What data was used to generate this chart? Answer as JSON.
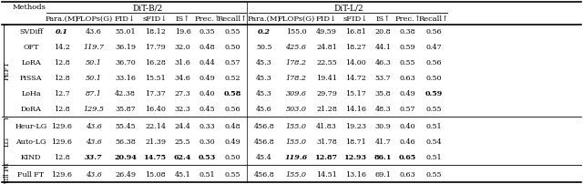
{
  "sub_headers": [
    "Para.(M)",
    "FLOPs(G)",
    "FID↓",
    "sFID↓",
    "IS↑",
    "Prec.↑",
    "Recall↑"
  ],
  "row_groups": [
    {
      "label": "PEFT",
      "rows": [
        {
          "method": "SVDiff",
          "b": [
            "0.1",
            "43.6",
            "55.01",
            "18.12",
            "19.6",
            "0.35",
            "0.55"
          ],
          "l": [
            "0.2",
            "155.0",
            "49.59",
            "16.81",
            "20.8",
            "0.38",
            "0.56"
          ],
          "b_bold": [
            true,
            false,
            false,
            false,
            false,
            false,
            false
          ],
          "b_italic": [
            true,
            false,
            false,
            false,
            false,
            false,
            false
          ],
          "l_bold": [
            true,
            false,
            false,
            false,
            false,
            false,
            false
          ],
          "l_italic": [
            true,
            false,
            false,
            false,
            false,
            false,
            false
          ]
        },
        {
          "method": "OFT",
          "b": [
            "14.2",
            "119.7",
            "36.19",
            "17.79",
            "32.0",
            "0.48",
            "0.50"
          ],
          "l": [
            "50.5",
            "425.6",
            "24.81",
            "18.27",
            "44.1",
            "0.59",
            "0.47"
          ],
          "b_bold": [
            false,
            false,
            false,
            false,
            false,
            false,
            false
          ],
          "b_italic": [
            false,
            true,
            false,
            false,
            false,
            false,
            false
          ],
          "l_bold": [
            false,
            false,
            false,
            false,
            false,
            false,
            false
          ],
          "l_italic": [
            false,
            true,
            false,
            false,
            false,
            false,
            false
          ]
        },
        {
          "method": "LoRA",
          "b": [
            "12.8",
            "50.1",
            "36.70",
            "16.28",
            "31.6",
            "0.44",
            "0.57"
          ],
          "l": [
            "45.3",
            "178.2",
            "22.55",
            "14.00",
            "46.3",
            "0.55",
            "0.56"
          ],
          "b_bold": [
            false,
            false,
            false,
            false,
            false,
            false,
            false
          ],
          "b_italic": [
            false,
            true,
            false,
            false,
            false,
            false,
            false
          ],
          "l_bold": [
            false,
            false,
            false,
            false,
            false,
            false,
            false
          ],
          "l_italic": [
            false,
            true,
            false,
            false,
            false,
            false,
            false
          ]
        },
        {
          "method": "PiSSA",
          "b": [
            "12.8",
            "50.1",
            "33.16",
            "15.51",
            "34.6",
            "0.49",
            "0.52"
          ],
          "l": [
            "45.3",
            "178.2",
            "19.41",
            "14.72",
            "53.7",
            "0.63",
            "0.50"
          ],
          "b_bold": [
            false,
            false,
            false,
            false,
            false,
            false,
            false
          ],
          "b_italic": [
            false,
            true,
            false,
            false,
            false,
            false,
            false
          ],
          "l_bold": [
            false,
            false,
            false,
            false,
            false,
            false,
            false
          ],
          "l_italic": [
            false,
            true,
            false,
            false,
            false,
            false,
            false
          ]
        },
        {
          "method": "LoHa",
          "b": [
            "12.7",
            "87.1",
            "42.38",
            "17.37",
            "27.3",
            "0.40",
            "0.58"
          ],
          "l": [
            "45.3",
            "309.6",
            "29.79",
            "15.17",
            "35.8",
            "0.49",
            "0.59"
          ],
          "b_bold": [
            false,
            false,
            false,
            false,
            false,
            false,
            true
          ],
          "b_italic": [
            false,
            true,
            false,
            false,
            false,
            false,
            false
          ],
          "l_bold": [
            false,
            false,
            false,
            false,
            false,
            false,
            true
          ],
          "l_italic": [
            false,
            true,
            false,
            false,
            false,
            false,
            false
          ]
        },
        {
          "method": "DoRA",
          "b": [
            "12.8",
            "129.5",
            "35.87",
            "16.40",
            "32.3",
            "0.45",
            "0.56"
          ],
          "l": [
            "45.6",
            "503.0",
            "21.28",
            "14.16",
            "48.3",
            "0.57",
            "0.55"
          ],
          "b_bold": [
            false,
            false,
            false,
            false,
            false,
            false,
            false
          ],
          "b_italic": [
            false,
            true,
            false,
            false,
            false,
            false,
            false
          ],
          "l_bold": [
            false,
            false,
            false,
            false,
            false,
            false,
            false
          ],
          "l_italic": [
            false,
            true,
            false,
            false,
            false,
            false,
            false
          ]
        }
      ]
    },
    {
      "label": "LG",
      "rows": [
        {
          "method": "Heur-LG",
          "b": [
            "129.6",
            "43.6",
            "55.45",
            "22.14",
            "24.4",
            "0.33",
            "0.48"
          ],
          "l": [
            "456.8",
            "155.0",
            "41.83",
            "19.23",
            "30.9",
            "0.40",
            "0.51"
          ],
          "b_bold": [
            false,
            false,
            false,
            false,
            false,
            false,
            false
          ],
          "b_italic": [
            false,
            true,
            false,
            false,
            false,
            false,
            false
          ],
          "l_bold": [
            false,
            false,
            false,
            false,
            false,
            false,
            false
          ],
          "l_italic": [
            false,
            true,
            false,
            false,
            false,
            false,
            false
          ]
        },
        {
          "method": "Auto-LG",
          "b": [
            "129.6",
            "43.6",
            "56.38",
            "21.39",
            "25.5",
            "0.30",
            "0.49"
          ],
          "l": [
            "456.8",
            "155.0",
            "31.78",
            "18.71",
            "41.7",
            "0.46",
            "0.54"
          ],
          "b_bold": [
            false,
            false,
            false,
            false,
            false,
            false,
            false
          ],
          "b_italic": [
            false,
            true,
            false,
            false,
            false,
            false,
            false
          ],
          "l_bold": [
            false,
            false,
            false,
            false,
            false,
            false,
            false
          ],
          "l_italic": [
            false,
            true,
            false,
            false,
            false,
            false,
            false
          ]
        },
        {
          "method": "KIND",
          "b": [
            "12.8",
            "33.7",
            "20.94",
            "14.75",
            "62.4",
            "0.53",
            "0.50"
          ],
          "l": [
            "45.4",
            "119.6",
            "12.87",
            "12.93",
            "86.1",
            "0.65",
            "0.51"
          ],
          "b_bold": [
            false,
            true,
            true,
            true,
            true,
            true,
            false
          ],
          "b_italic": [
            false,
            true,
            false,
            false,
            false,
            false,
            false
          ],
          "l_bold": [
            false,
            true,
            true,
            true,
            true,
            true,
            false
          ],
          "l_italic": [
            false,
            true,
            false,
            false,
            false,
            false,
            false
          ]
        }
      ]
    },
    {
      "label": "Full FT",
      "rows": [
        {
          "method": "Full FT",
          "b": [
            "129.6",
            "43.6",
            "26.49",
            "15.08",
            "45.1",
            "0.51",
            "0.55"
          ],
          "l": [
            "456.8",
            "155.0",
            "14.51",
            "13.16",
            "69.1",
            "0.63",
            "0.55"
          ],
          "b_bold": [
            false,
            false,
            false,
            false,
            false,
            false,
            false
          ],
          "b_italic": [
            false,
            true,
            false,
            false,
            false,
            false,
            false
          ],
          "l_bold": [
            false,
            false,
            false,
            false,
            false,
            false,
            false
          ],
          "l_italic": [
            false,
            true,
            false,
            false,
            false,
            false,
            false
          ]
        }
      ]
    }
  ]
}
